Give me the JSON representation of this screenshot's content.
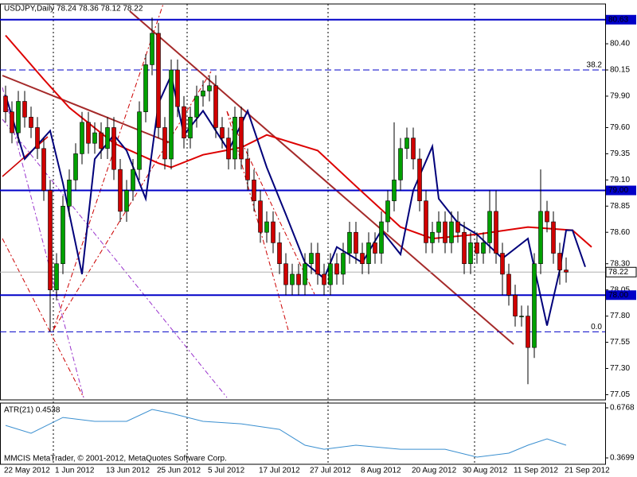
{
  "chart_data": {
    "type": "candlestick",
    "title": "USDJPY,Daily  78.24 78.36 78.12 78.22",
    "categories": [
      "22 May 2012",
      null,
      null,
      null,
      null,
      null,
      null,
      null,
      "1 Jun 2012",
      null,
      null,
      null,
      null,
      null,
      null,
      null,
      "13 Jun 2012",
      null,
      null,
      null,
      null,
      null,
      null,
      null,
      "25 Jun 2012",
      null,
      null,
      null,
      null,
      null,
      null,
      null,
      "5 Jul 2012",
      null,
      null,
      null,
      null,
      null,
      null,
      null,
      "17 Jul 2012",
      null,
      null,
      null,
      null,
      null,
      null,
      null,
      "27 Jul 2012",
      null,
      null,
      null,
      null,
      null,
      null,
      null,
      "8 Aug 2012",
      null,
      null,
      null,
      null,
      null,
      null,
      null,
      "20 Aug 2012",
      null,
      null,
      null,
      null,
      null,
      null,
      null,
      "30 Aug 2012",
      null,
      null,
      null,
      null,
      null,
      null,
      null,
      "11 Sep 2012",
      null,
      null,
      null,
      null,
      null,
      null,
      null,
      "21 Sep 2012"
    ],
    "open": [
      79.9,
      79.75,
      79.55,
      79.85,
      79.7,
      79.6,
      79.4,
      79.0,
      78.05,
      78.3,
      78.85,
      79.1,
      79.35,
      79.65,
      79.45,
      79.55,
      79.4,
      79.6,
      79.2,
      78.8,
      79.0,
      79.2,
      79.75,
      80.2,
      80.5,
      79.6,
      79.3,
      80.15,
      79.8,
      79.5,
      79.7,
      79.9,
      79.95,
      80.0,
      79.6,
      79.5,
      79.3,
      79.7,
      79.3,
      79.1,
      78.9,
      78.6,
      78.7,
      78.5,
      78.3,
      78.1,
      78.2,
      78.1,
      78.3,
      78.4,
      78.2,
      78.1,
      78.3,
      78.2,
      78.4,
      78.6,
      78.4,
      78.3,
      78.5,
      78.4,
      78.7,
      78.9,
      79.1,
      79.4,
      79.5,
      79.3,
      78.9,
      78.5,
      78.6,
      78.7,
      78.5,
      78.7,
      78.6,
      78.3,
      78.5,
      78.4,
      78.5,
      78.8,
      78.4,
      78.2,
      78.0,
      77.8,
      77.8,
      77.5,
      78.3,
      78.8,
      78.7,
      78.4,
      78.24
    ],
    "high": [
      80.0,
      79.85,
      79.95,
      79.95,
      79.8,
      79.7,
      79.5,
      79.1,
      78.4,
      78.95,
      79.2,
      79.45,
      79.75,
      79.75,
      79.65,
      79.65,
      79.7,
      79.7,
      79.3,
      79.1,
      79.3,
      79.85,
      80.3,
      80.65,
      80.6,
      79.7,
      80.25,
      80.25,
      79.9,
      79.8,
      80.0,
      80.05,
      80.1,
      80.1,
      79.7,
      79.6,
      79.8,
      79.8,
      79.4,
      79.2,
      79.0,
      78.8,
      78.8,
      78.6,
      78.4,
      78.3,
      78.3,
      78.4,
      78.5,
      78.5,
      78.3,
      78.4,
      78.4,
      78.5,
      78.7,
      78.7,
      78.5,
      78.6,
      78.6,
      78.8,
      79.0,
      79.65,
      79.5,
      79.6,
      79.6,
      79.4,
      79.0,
      78.7,
      78.8,
      78.8,
      78.8,
      78.8,
      78.7,
      78.6,
      78.6,
      78.6,
      79.0,
      79.0,
      78.5,
      78.3,
      78.1,
      77.9,
      77.9,
      78.4,
      79.2,
      78.9,
      78.8,
      78.5,
      78.36
    ],
    "low": [
      79.65,
      79.45,
      79.45,
      79.6,
      79.5,
      79.3,
      78.9,
      77.65,
      77.95,
      78.2,
      78.75,
      79.0,
      79.25,
      79.35,
      79.35,
      79.3,
      79.3,
      79.1,
      78.7,
      78.7,
      78.9,
      79.1,
      79.65,
      80.1,
      79.5,
      79.2,
      79.2,
      79.7,
      79.4,
      79.4,
      79.6,
      79.8,
      79.85,
      79.5,
      79.4,
      79.2,
      79.2,
      79.2,
      79.0,
      78.8,
      78.5,
      78.5,
      78.4,
      78.2,
      78.0,
      78.0,
      78.0,
      78.0,
      78.2,
      78.1,
      78.0,
      78.0,
      78.1,
      78.1,
      78.3,
      78.3,
      78.2,
      78.2,
      78.3,
      78.3,
      78.6,
      78.8,
      79.0,
      79.3,
      79.2,
      78.8,
      78.4,
      78.4,
      78.5,
      78.4,
      78.4,
      78.5,
      78.2,
      78.2,
      78.3,
      78.3,
      78.4,
      78.3,
      78.0,
      77.9,
      77.7,
      77.7,
      77.15,
      77.4,
      78.2,
      78.6,
      78.3,
      78.1,
      78.12
    ],
    "close": [
      79.75,
      79.55,
      79.85,
      79.7,
      79.6,
      79.4,
      79.0,
      78.05,
      78.3,
      78.85,
      79.1,
      79.35,
      79.65,
      79.45,
      79.55,
      79.4,
      79.6,
      79.2,
      78.8,
      79.0,
      79.2,
      79.75,
      80.2,
      80.5,
      79.6,
      79.3,
      80.15,
      79.8,
      79.5,
      79.7,
      79.9,
      79.95,
      80.0,
      79.6,
      79.5,
      79.3,
      79.7,
      79.3,
      79.1,
      78.9,
      78.6,
      78.7,
      78.5,
      78.3,
      78.1,
      78.2,
      78.1,
      78.3,
      78.4,
      78.2,
      78.1,
      78.3,
      78.2,
      78.4,
      78.6,
      78.4,
      78.3,
      78.5,
      78.4,
      78.7,
      78.9,
      79.1,
      79.4,
      79.5,
      79.3,
      78.9,
      78.5,
      78.6,
      78.7,
      78.5,
      78.7,
      78.6,
      78.3,
      78.5,
      78.4,
      78.5,
      78.8,
      78.4,
      78.2,
      78.0,
      77.8,
      77.8,
      77.5,
      78.3,
      78.8,
      78.7,
      78.4,
      78.24,
      78.22
    ],
    "bull_color": "#00a000",
    "bear_color": "#d00000",
    "xlim": [
      -0.875,
      94.125
    ],
    "ylim": [
      77.0,
      80.78
    ],
    "yticks": [
      {
        "value": 80.4,
        "label": "80.40"
      },
      80.15,
      {
        "value": 79.9,
        "label": "79.90"
      },
      {
        "value": 79.6,
        "label": "79.60"
      },
      79.35,
      {
        "value": 79.1,
        "label": "79.10"
      },
      78.85,
      {
        "value": 78.6,
        "label": "78.60"
      },
      {
        "value": 78.3,
        "label": "78.30"
      },
      78.05,
      {
        "value": 77.8,
        "label": "77.80"
      },
      77.55,
      {
        "value": 77.3,
        "label": "77.30"
      },
      77.05
    ],
    "levels": [
      {
        "value": 80.63,
        "label": "80.63",
        "style": "solid"
      },
      {
        "value": 79.0,
        "label": "79.00",
        "style": "solid"
      },
      {
        "value": 78.0,
        "label": "78.00",
        "style": "solid"
      },
      {
        "value": 80.15,
        "label": "38.2",
        "style": "dashed"
      },
      {
        "value": 77.65,
        "label": "0.0",
        "style": "dashed"
      }
    ],
    "level_color": "#0000c8",
    "bid": {
      "value": 78.22,
      "label": "78.22"
    },
    "overlays": [
      {
        "color": "#dd0000",
        "x": [
          0,
          6,
          10,
          17,
          24,
          26,
          31,
          37,
          41,
          49,
          55,
          62,
          67,
          74,
          82,
          89,
          92
        ],
        "values": [
          80.48,
          80.06,
          79.79,
          79.45,
          79.26,
          79.22,
          79.34,
          79.41,
          79.53,
          79.38,
          79.04,
          78.65,
          78.54,
          78.58,
          78.65,
          78.62,
          78.46
        ]
      },
      {
        "color": "#00007a",
        "x": [
          0,
          3,
          7,
          9,
          12,
          14,
          17,
          19,
          22,
          24,
          26,
          28,
          31,
          35,
          38,
          41,
          44,
          47,
          50,
          52,
          56,
          59,
          62,
          64,
          67,
          68,
          71,
          74,
          78,
          82,
          85,
          87,
          88,
          89,
          91
        ],
        "values": [
          79.91,
          79.3,
          79.57,
          79.07,
          78.2,
          79.3,
          79.53,
          79.38,
          78.92,
          79.83,
          80.1,
          79.53,
          79.76,
          79.38,
          79.76,
          79.22,
          78.77,
          78.31,
          78.16,
          78.46,
          78.31,
          78.62,
          78.39,
          79.0,
          79.42,
          78.92,
          78.69,
          78.58,
          78.35,
          78.54,
          77.71,
          78.24,
          78.62,
          78.62,
          78.27
        ]
      }
    ],
    "indicator": {
      "title": "ATR(21) 0.4538",
      "color": "#3a8fd0",
      "ylim": [
        0.331,
        0.706
      ],
      "yticks": [
        0.6768,
        0.3699
      ],
      "x": [
        0,
        4,
        9,
        14,
        19,
        23,
        26,
        31,
        37,
        43,
        47,
        50,
        55,
        62,
        69,
        74,
        79,
        82,
        85,
        88
      ],
      "values": [
        0.569,
        0.521,
        0.618,
        0.594,
        0.594,
        0.667,
        0.643,
        0.594,
        0.579,
        0.545,
        0.448,
        0.423,
        0.448,
        0.423,
        0.423,
        0.375,
        0.399,
        0.448,
        0.487,
        0.448
      ]
    },
    "copyright": "MMCIS MetaTrader, © 2001-2012, MetaQuotes Software Corp."
  }
}
